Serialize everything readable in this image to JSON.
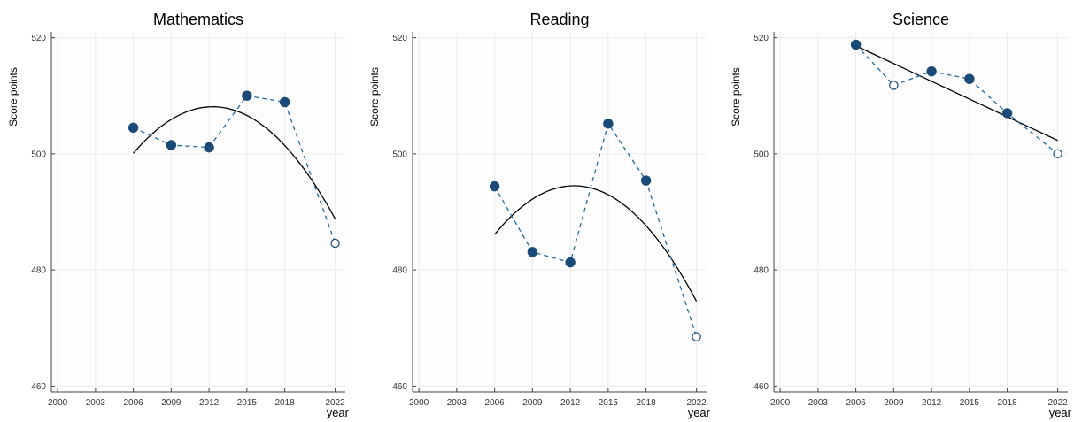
{
  "colors": {
    "series": "#1f6aa5",
    "marker": "#1a4a78",
    "trend": "#000000",
    "grid": "#ececec",
    "axis": "#444444"
  },
  "chart_data": [
    {
      "type": "scatter",
      "title": "Mathematics",
      "xlabel": "year",
      "ylabel": "Score points",
      "xlim": [
        1999.5,
        2022.8
      ],
      "ylim": [
        459,
        521
      ],
      "xticks": [
        2000,
        2003,
        2006,
        2009,
        2012,
        2015,
        2018,
        2022
      ],
      "yticks": [
        460,
        480,
        500,
        520
      ],
      "grid": true,
      "legend": "none",
      "series": [
        {
          "x": [
            2006,
            2009,
            2012,
            2015,
            2018,
            2022
          ],
          "y": [
            504.5,
            501.5,
            501.1,
            510.0,
            508.9,
            484.6
          ],
          "filled": [
            true,
            true,
            true,
            true,
            true,
            false
          ]
        }
      ],
      "trend": {
        "kind": "quadratic",
        "x": [
          2006,
          2012.3,
          2022
        ],
        "y": [
          500.1,
          508.1,
          488.8
        ]
      }
    },
    {
      "type": "scatter",
      "title": "Reading",
      "xlabel": "year",
      "ylabel": "Score points",
      "xlim": [
        1999.5,
        2022.8
      ],
      "ylim": [
        459,
        521
      ],
      "xticks": [
        2000,
        2003,
        2006,
        2009,
        2012,
        2015,
        2018,
        2022
      ],
      "yticks": [
        460,
        480,
        500,
        520
      ],
      "grid": true,
      "legend": "none",
      "series": [
        {
          "x": [
            2006,
            2009,
            2012,
            2015,
            2018,
            2022
          ],
          "y": [
            494.4,
            483.1,
            481.3,
            505.2,
            495.4,
            468.5
          ],
          "filled": [
            true,
            true,
            true,
            true,
            true,
            false
          ]
        }
      ],
      "trend": {
        "kind": "quadratic",
        "x": [
          2006,
          2012.3,
          2022
        ],
        "y": [
          486.1,
          494.5,
          474.6
        ]
      }
    },
    {
      "type": "scatter",
      "title": "Science",
      "xlabel": "year",
      "ylabel": "Score points",
      "xlim": [
        1999.5,
        2022.8
      ],
      "ylim": [
        459,
        521
      ],
      "xticks": [
        2000,
        2003,
        2006,
        2009,
        2012,
        2015,
        2018,
        2022
      ],
      "yticks": [
        460,
        480,
        500,
        520
      ],
      "grid": true,
      "legend": "none",
      "series": [
        {
          "x": [
            2006,
            2009,
            2012,
            2015,
            2018,
            2022
          ],
          "y": [
            518.8,
            511.8,
            514.2,
            512.9,
            507.0,
            500.0
          ],
          "filled": [
            true,
            false,
            true,
            true,
            true,
            false
          ]
        }
      ],
      "trend": {
        "kind": "linear",
        "x": [
          2006,
          2022
        ],
        "y": [
          518.6,
          502.3
        ]
      }
    }
  ]
}
